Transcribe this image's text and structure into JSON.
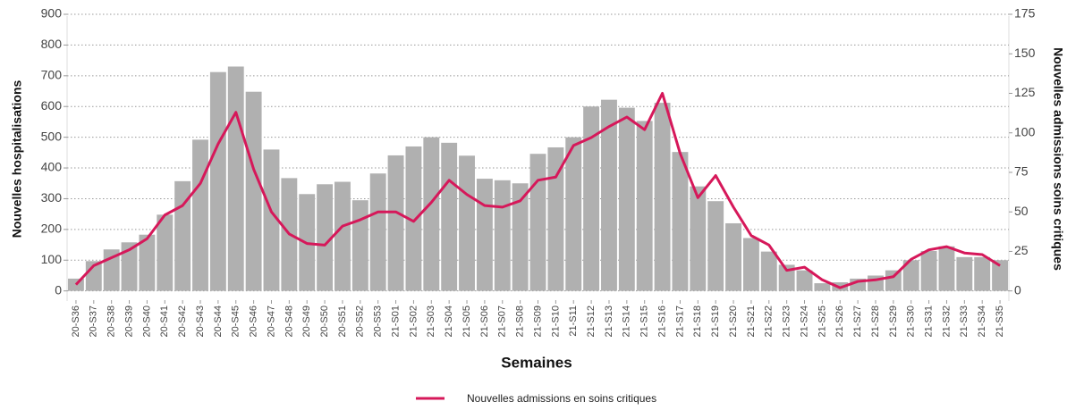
{
  "chart_data": {
    "type": "bar",
    "x_label": "Semaines",
    "y_label": "Nouvelles hospitalisations",
    "y2_label": "Nouvelles admissions soins critiques",
    "categories": [
      "20-S36",
      "20-S37",
      "20-S38",
      "20-S39",
      "20-S40",
      "20-S41",
      "20-S42",
      "20-S43",
      "20-S44",
      "20-S45",
      "20-S46",
      "20-S47",
      "20-S48",
      "20-S49",
      "20-S50",
      "20-S51",
      "20-S52",
      "20-S53",
      "21-S01",
      "21-S02",
      "21-S03",
      "21-S04",
      "21-S05",
      "21-S06",
      "21-S07",
      "21-S08",
      "21-S09",
      "21-S10",
      "21-S11",
      "21-S12",
      "21-S13",
      "21-S14",
      "21-S15",
      "21-S16",
      "21-S17",
      "21-S18",
      "21-S19",
      "21-S20",
      "21-S21",
      "21-S22",
      "21-S23",
      "21-S24",
      "21-S25",
      "21-S26",
      "21-S27",
      "21-S28",
      "21-S29",
      "21-S30",
      "21-S31",
      "21-S32",
      "21-S33",
      "21-S34",
      "21-S35"
    ],
    "series": [
      {
        "type": "bar",
        "color": "#b0b0b0",
        "values": [
          40,
          97,
          135,
          158,
          183,
          248,
          357,
          492,
          712,
          730,
          648,
          460,
          367,
          315,
          347,
          355,
          295,
          382,
          441,
          470,
          500,
          482,
          440,
          365,
          360,
          350,
          446,
          467,
          500,
          600,
          622,
          596,
          553,
          612,
          452,
          340,
          292,
          220,
          172,
          128,
          85,
          67,
          25,
          28,
          40,
          50,
          67,
          100,
          130,
          145,
          110,
          110,
          100
        ]
      },
      {
        "type": "line",
        "name": "Nouvelles admissions en soins critiques",
        "color": "#d6185a",
        "axis": "y2",
        "values": [
          4,
          16,
          21,
          26,
          33,
          48,
          54,
          68,
          93,
          113,
          77,
          50,
          36,
          30,
          29,
          41,
          45,
          50,
          50,
          44,
          56,
          70,
          61,
          54,
          53,
          57,
          70,
          72,
          92,
          97,
          104,
          110,
          102,
          125,
          87,
          59,
          73,
          53,
          35,
          29,
          13,
          15,
          7,
          2,
          6,
          7,
          9,
          20,
          26,
          28,
          24,
          23,
          16
        ]
      }
    ],
    "ylim": [
      -30,
      900
    ],
    "yticks": [
      0,
      100,
      200,
      300,
      400,
      500,
      600,
      700,
      800,
      900
    ],
    "y2lim": [
      -5.83,
      175
    ],
    "y2ticks": [
      0,
      25,
      50,
      75,
      100,
      125,
      150,
      175
    ],
    "grid": true
  }
}
